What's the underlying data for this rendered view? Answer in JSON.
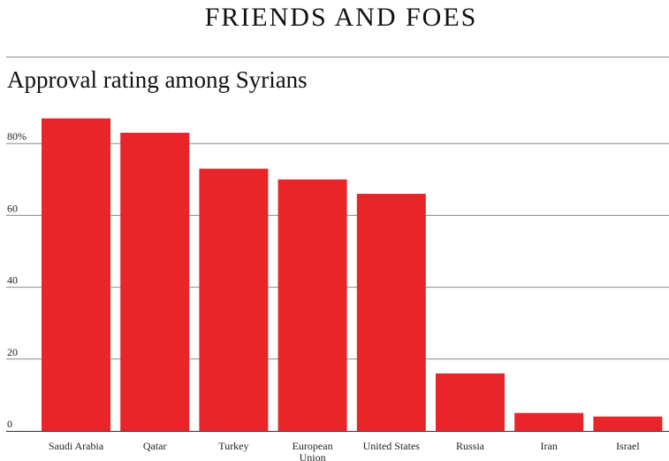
{
  "header": {
    "title": "FRIENDS AND FOES",
    "subtitle": "Approval rating among Syrians"
  },
  "chart_data": {
    "type": "bar",
    "title": "FRIENDS AND FOES",
    "subtitle": "Approval rating among Syrians",
    "xlabel": "",
    "ylabel": "",
    "categories": [
      "Saudi Arabia",
      "Qatar",
      "Turkey",
      "European Union",
      "United States",
      "Russia",
      "Iran",
      "Israel"
    ],
    "values": [
      87,
      83,
      73,
      70,
      66,
      16,
      5,
      4
    ],
    "ylim": [
      0,
      90
    ],
    "yticks": [
      0,
      20,
      40,
      60,
      80
    ],
    "ytick_labels": [
      "0",
      "20",
      "40",
      "60",
      "80%"
    ],
    "grid": true,
    "legend": "none",
    "bar_color": "#e8262a"
  }
}
